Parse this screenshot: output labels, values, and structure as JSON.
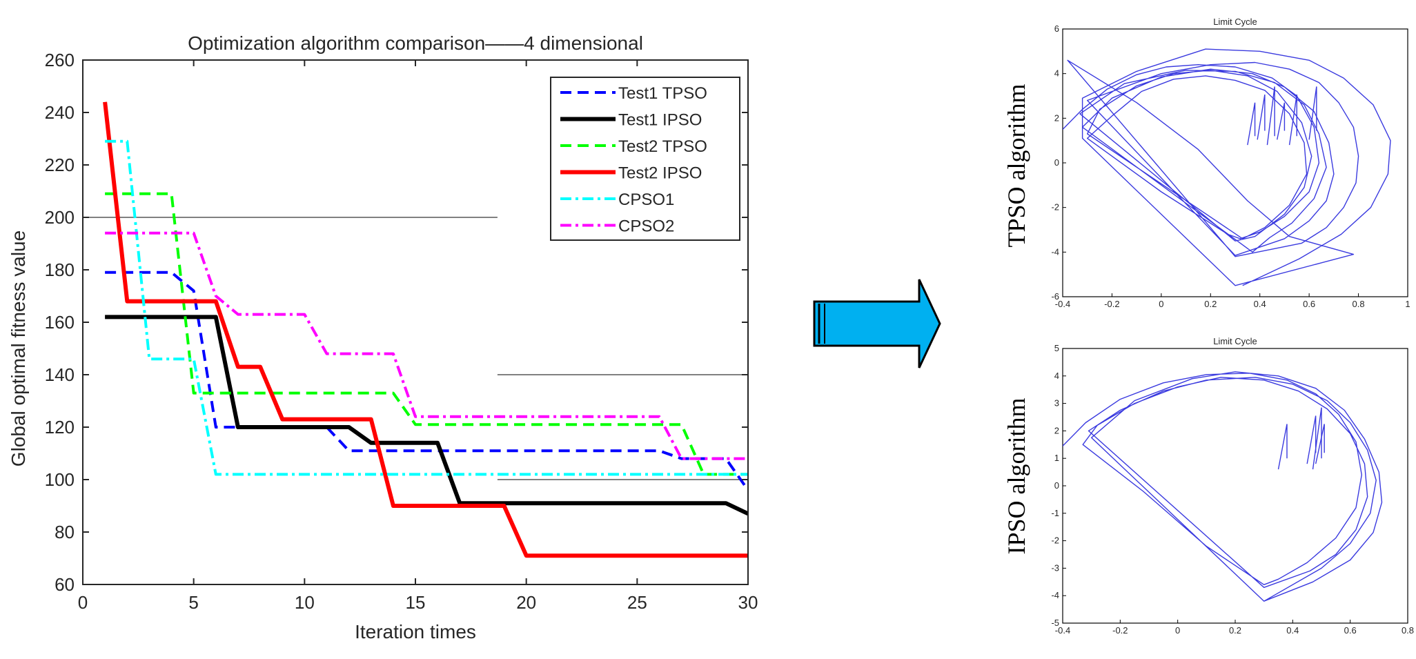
{
  "main_chart_data": {
    "type": "line",
    "title": "Optimization algorithm comparison——4 dimensional",
    "xlabel": "Iteration times",
    "ylabel": "Global optimal fitness value",
    "xlim": [
      0,
      30
    ],
    "ylim": [
      60,
      260
    ],
    "xticks": [
      "0",
      "5",
      "10",
      "15",
      "20",
      "25",
      "30"
    ],
    "yticks": [
      "60",
      "80",
      "100",
      "120",
      "140",
      "160",
      "180",
      "200",
      "220",
      "240",
      "260"
    ],
    "legend_position": "top-right",
    "series": [
      {
        "name": "Test1 TPSO",
        "color": "#0000ff",
        "dash": "dashed",
        "points": [
          [
            1,
            179
          ],
          [
            4,
            179
          ],
          [
            5,
            172
          ],
          [
            6,
            120
          ],
          [
            7,
            120
          ],
          [
            11,
            120
          ],
          [
            12,
            111
          ],
          [
            26,
            111
          ],
          [
            27,
            108
          ],
          [
            29,
            108
          ],
          [
            30,
            96
          ]
        ]
      },
      {
        "name": "Test1 IPSO",
        "color": "#000000",
        "dash": "solid",
        "points": [
          [
            1,
            162
          ],
          [
            6,
            162
          ],
          [
            7,
            120
          ],
          [
            12,
            120
          ],
          [
            13,
            114
          ],
          [
            16,
            114
          ],
          [
            17,
            91
          ],
          [
            29,
            91
          ],
          [
            30,
            87
          ]
        ]
      },
      {
        "name": "Test2 TPSO",
        "color": "#00ff00",
        "dash": "dashed",
        "points": [
          [
            1,
            209
          ],
          [
            4,
            209
          ],
          [
            5,
            133
          ],
          [
            14,
            133
          ],
          [
            15,
            121
          ],
          [
            27,
            121
          ],
          [
            28,
            102
          ],
          [
            30,
            102
          ]
        ]
      },
      {
        "name": "Test2 IPSO",
        "color": "#ff0000",
        "dash": "solid",
        "points": [
          [
            1,
            244
          ],
          [
            2,
            168
          ],
          [
            6,
            168
          ],
          [
            7,
            143
          ],
          [
            8,
            143
          ],
          [
            9,
            123
          ],
          [
            13,
            123
          ],
          [
            14,
            90
          ],
          [
            19,
            90
          ],
          [
            20,
            71
          ],
          [
            30,
            71
          ]
        ]
      },
      {
        "name": "CPSO1",
        "color": "#00ffff",
        "dash": "dashdot",
        "points": [
          [
            1,
            229
          ],
          [
            2,
            229
          ],
          [
            3,
            146
          ],
          [
            5,
            146
          ],
          [
            6,
            102
          ],
          [
            30,
            102
          ]
        ]
      },
      {
        "name": "CPSO2",
        "color": "#ff00ff",
        "dash": "dashdot",
        "points": [
          [
            1,
            194
          ],
          [
            5,
            194
          ],
          [
            6,
            170
          ],
          [
            7,
            163
          ],
          [
            10,
            163
          ],
          [
            11,
            148
          ],
          [
            14,
            148
          ],
          [
            15,
            124
          ],
          [
            26,
            124
          ],
          [
            27,
            108
          ],
          [
            30,
            108
          ]
        ]
      }
    ],
    "reference_lines": [
      {
        "y": 200,
        "x_from": 0,
        "x_to": 18.7
      },
      {
        "y": 140,
        "x_from": 18.7,
        "x_to": 30
      },
      {
        "y": 100,
        "x_from": 18.7,
        "x_to": 30
      }
    ]
  },
  "arrow": {
    "color": "#00b0f0",
    "direction": "right"
  },
  "top_panel": {
    "side_label": "TPSO algorithm",
    "chart_data": {
      "type": "line",
      "title": "Limit Cycle",
      "xlim": [
        -0.4,
        1
      ],
      "ylim": [
        -6,
        6
      ],
      "xticks": [
        "-0.4",
        "-0.2",
        "0",
        "0.2",
        "0.4",
        "0.6",
        "0.8",
        "1"
      ],
      "yticks": [
        "-6",
        "-4",
        "-2",
        "0",
        "2",
        "4",
        "6"
      ],
      "series": [
        {
          "name": "trajectory",
          "color": "#3a3adf",
          "points": [
            [
              -0.4,
              1.5
            ],
            [
              -0.32,
              2.4
            ],
            [
              -0.22,
              3.3
            ],
            [
              -0.1,
              3.95
            ],
            [
              0.02,
              4.3
            ],
            [
              0.15,
              4.4
            ],
            [
              0.3,
              4.3
            ],
            [
              0.45,
              3.8
            ],
            [
              0.55,
              3.0
            ],
            [
              0.62,
              1.6
            ],
            [
              0.64,
              0.0
            ],
            [
              0.6,
              -1.3
            ],
            [
              0.5,
              -2.4
            ],
            [
              0.4,
              -3.1
            ],
            [
              0.32,
              -3.4
            ],
            [
              0.27,
              -3.2
            ],
            [
              0.0,
              -1.3
            ],
            [
              -0.3,
              1.1
            ],
            [
              -0.2,
              2.1
            ],
            [
              -0.08,
              3.2
            ],
            [
              0.05,
              3.75
            ],
            [
              0.18,
              3.9
            ],
            [
              0.3,
              3.7
            ],
            [
              0.42,
              3.25
            ],
            [
              0.52,
              2.2
            ],
            [
              0.58,
              0.9
            ],
            [
              0.59,
              -0.5
            ],
            [
              0.52,
              -1.9
            ],
            [
              0.42,
              -2.9
            ],
            [
              0.33,
              -3.4
            ],
            [
              -0.3,
              1.3
            ],
            [
              -0.25,
              2.4
            ],
            [
              -0.1,
              3.45
            ],
            [
              0.05,
              4.0
            ],
            [
              0.2,
              4.15
            ],
            [
              0.35,
              3.9
            ],
            [
              0.47,
              3.2
            ],
            [
              0.57,
              1.8
            ],
            [
              0.61,
              0.3
            ],
            [
              0.58,
              -1.1
            ],
            [
              0.5,
              -2.3
            ],
            [
              0.38,
              -3.3
            ],
            [
              0.3,
              -3.5
            ],
            [
              -0.33,
              2.2
            ],
            [
              -0.15,
              3.55
            ],
            [
              0.1,
              4.15
            ],
            [
              0.3,
              4.1
            ],
            [
              0.46,
              3.6
            ],
            [
              0.58,
              2.6
            ],
            [
              0.64,
              1.3
            ],
            [
              0.67,
              -0.2
            ],
            [
              0.62,
              -1.6
            ],
            [
              0.53,
              -2.7
            ],
            [
              0.44,
              -3.35
            ],
            [
              0.37,
              -4.0
            ],
            [
              -0.32,
              1.6
            ],
            [
              -0.2,
              2.9
            ],
            [
              0.0,
              3.85
            ],
            [
              0.2,
              4.2
            ],
            [
              0.37,
              4.0
            ],
            [
              0.5,
              3.4
            ],
            [
              0.62,
              2.3
            ],
            [
              0.68,
              0.9
            ],
            [
              0.7,
              -0.5
            ],
            [
              0.67,
              -1.7
            ],
            [
              0.6,
              -2.6
            ],
            [
              0.5,
              -3.4
            ],
            [
              0.3,
              -4.15
            ],
            [
              -0.3,
              2.8
            ],
            [
              0.0,
              4.0
            ],
            [
              0.2,
              4.4
            ],
            [
              0.38,
              4.5
            ],
            [
              0.52,
              4.2
            ],
            [
              0.64,
              3.6
            ],
            [
              0.72,
              2.7
            ],
            [
              0.78,
              1.6
            ],
            [
              0.8,
              0.3
            ],
            [
              0.79,
              -0.9
            ],
            [
              0.74,
              -2.0
            ],
            [
              0.67,
              -2.9
            ],
            [
              0.57,
              -3.6
            ],
            [
              0.3,
              -4.2
            ],
            [
              -0.38,
              4.6
            ],
            [
              -0.1,
              2.7
            ],
            [
              0.15,
              0.6
            ],
            [
              0.35,
              -1.7
            ],
            [
              0.52,
              -3.3
            ],
            [
              0.78,
              -4.1
            ],
            [
              0.3,
              -5.5
            ],
            [
              -0.32,
              1.1
            ],
            [
              -0.32,
              2.9
            ],
            [
              -0.1,
              4.1
            ],
            [
              0.18,
              5.1
            ],
            [
              0.4,
              5.0
            ],
            [
              0.6,
              4.6
            ],
            [
              0.74,
              3.8
            ],
            [
              0.86,
              2.6
            ],
            [
              0.93,
              1.0
            ],
            [
              0.92,
              -0.5
            ],
            [
              0.85,
              -2.0
            ],
            [
              0.73,
              -3.2
            ],
            [
              0.56,
              -4.3
            ],
            [
              0.33,
              -5.5
            ]
          ]
        }
      ],
      "spike_x": [
        0.38,
        0.42,
        0.46,
        0.5,
        0.55,
        0.63
      ]
    }
  },
  "bottom_panel": {
    "side_label": "IPSO algorithm",
    "chart_data": {
      "type": "line",
      "title": "Limit Cycle",
      "xlim": [
        -0.4,
        0.8
      ],
      "ylim": [
        -5,
        5
      ],
      "xticks": [
        "-0.4",
        "-0.2",
        "0",
        "0.2",
        "0.4",
        "0.6",
        "0.8"
      ],
      "yticks": [
        "-5",
        "-4",
        "-3",
        "-2",
        "-1",
        "0",
        "1",
        "2",
        "3",
        "4",
        "5"
      ],
      "series": [
        {
          "name": "trajectory",
          "color": "#3a3adf",
          "points": [
            [
              -0.4,
              1.45
            ],
            [
              -0.32,
              2.3
            ],
            [
              -0.2,
              3.15
            ],
            [
              -0.05,
              3.75
            ],
            [
              0.1,
              4.05
            ],
            [
              0.25,
              4.1
            ],
            [
              0.38,
              3.85
            ],
            [
              0.48,
              3.35
            ],
            [
              0.56,
              2.6
            ],
            [
              0.62,
              1.6
            ],
            [
              0.64,
              0.4
            ],
            [
              0.62,
              -0.8
            ],
            [
              0.55,
              -1.9
            ],
            [
              0.45,
              -2.8
            ],
            [
              0.35,
              -3.4
            ],
            [
              0.3,
              -3.6
            ],
            [
              0.1,
              -2.2
            ],
            [
              -0.12,
              -0.2
            ],
            [
              -0.33,
              1.5
            ],
            [
              -0.28,
              2.2
            ],
            [
              -0.15,
              3.0
            ],
            [
              0.0,
              3.6
            ],
            [
              0.15,
              3.95
            ],
            [
              0.3,
              3.85
            ],
            [
              0.42,
              3.45
            ],
            [
              0.52,
              2.8
            ],
            [
              0.6,
              1.9
            ],
            [
              0.65,
              0.8
            ],
            [
              0.66,
              -0.4
            ],
            [
              0.62,
              -1.6
            ],
            [
              0.55,
              -2.5
            ],
            [
              0.46,
              -3.1
            ],
            [
              0.3,
              -3.7
            ],
            [
              -0.31,
              2.0
            ],
            [
              -0.2,
              2.75
            ],
            [
              -0.05,
              3.45
            ],
            [
              0.1,
              3.85
            ],
            [
              0.27,
              3.95
            ],
            [
              0.4,
              3.7
            ],
            [
              0.52,
              3.1
            ],
            [
              0.6,
              2.3
            ],
            [
              0.66,
              1.3
            ],
            [
              0.69,
              0.2
            ],
            [
              0.67,
              -1.0
            ],
            [
              0.6,
              -2.1
            ],
            [
              0.5,
              -3.0
            ],
            [
              0.3,
              -4.2
            ],
            [
              -0.3,
              1.75
            ],
            [
              -0.15,
              3.1
            ],
            [
              0.05,
              3.9
            ],
            [
              0.2,
              4.15
            ],
            [
              0.35,
              4.0
            ],
            [
              0.48,
              3.55
            ],
            [
              0.58,
              2.75
            ],
            [
              0.65,
              1.7
            ],
            [
              0.7,
              0.5
            ],
            [
              0.71,
              -0.6
            ],
            [
              0.68,
              -1.7
            ],
            [
              0.6,
              -2.7
            ],
            [
              0.47,
              -3.5
            ],
            [
              0.3,
              -4.2
            ]
          ]
        }
      ],
      "spike_x": [
        0.38,
        0.48,
        0.5,
        0.51
      ]
    }
  }
}
